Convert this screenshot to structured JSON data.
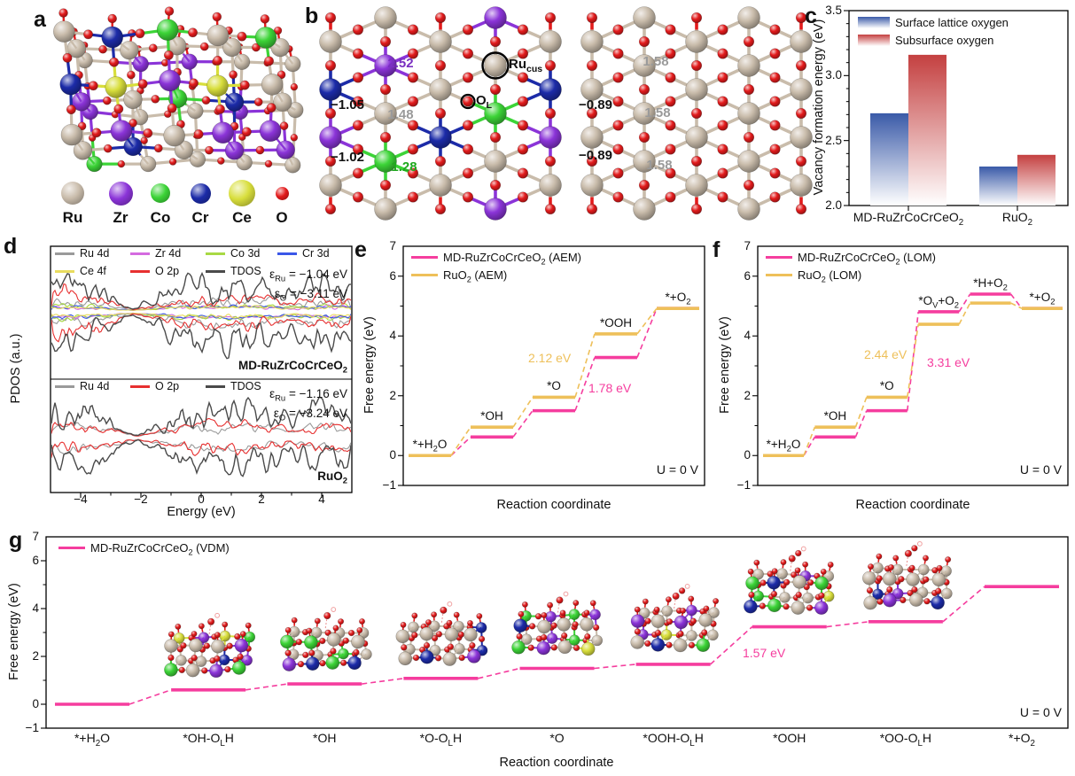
{
  "figure": {
    "panel_labels": {
      "a": "a",
      "b": "b",
      "c": "c",
      "d": "d",
      "e": "e",
      "f": "f",
      "g": "g"
    },
    "atom_legend": [
      {
        "element": "Ru",
        "color": "#C9BCAB"
      },
      {
        "element": "Zr",
        "color": "#8B34D8"
      },
      {
        "element": "Co",
        "color": "#3CD437"
      },
      {
        "element": "Cr",
        "color": "#1C2BA8"
      },
      {
        "element": "Ce",
        "color": "#D8DE3C"
      },
      {
        "element": "O",
        "color": "#E31B1C"
      }
    ],
    "panel_b": {
      "left_annotations": [
        {
          "text": "2.52",
          "color": "#7A2FC0"
        },
        {
          "text": "−1.05",
          "color": "#111111"
        },
        {
          "text": "1.48",
          "color": "#9A9A9A"
        },
        {
          "text": "−1.02",
          "color": "#111111"
        },
        {
          "text": "1.28",
          "color": "#1FA81F"
        }
      ],
      "site_labels": [
        {
          "text": "Ru_{cus}"
        },
        {
          "text": "O_{L}"
        }
      ],
      "right_annotations": [
        {
          "text": "1.58",
          "color": "#9A9A9A"
        },
        {
          "text": "−0.89",
          "color": "#111111"
        },
        {
          "text": "1.58",
          "color": "#9A9A9A"
        },
        {
          "text": "−0.89",
          "color": "#111111"
        },
        {
          "text": "1.58",
          "color": "#9A9A9A"
        }
      ]
    }
  },
  "chart_data": [
    {
      "panel": "c",
      "type": "bar",
      "categories": [
        "MD-RuZrCoCrCeO_{2}",
        "RuO_{2}"
      ],
      "series": [
        {
          "name": "Surface lattice oxygen",
          "color": "#3A5AA8",
          "values": [
            2.71,
            2.3
          ]
        },
        {
          "name": "Subsurface oxygen",
          "color": "#C44040",
          "values": [
            3.16,
            2.39
          ]
        }
      ],
      "ylabel": "Vacancy formation energy (eV)",
      "ylim": [
        2.0,
        3.5
      ],
      "yticks": [
        "2.0",
        "2.5",
        "3.0",
        "3.5"
      ],
      "bar_fill": "vertical gradient fading to white at base",
      "legend_position": "top-left"
    },
    {
      "panel": "d",
      "type": "line",
      "subtype": "PDOS",
      "xlabel": "Energy (eV)",
      "ylabel": "PDOS (a.u.)",
      "xlim": [
        -5,
        5
      ],
      "xticks": [
        -4,
        -2,
        0,
        2,
        4
      ],
      "subpanels": [
        {
          "material": "MD-RuZrCoCrCeO_{2}",
          "series": [
            {
              "name": "Ru 4d",
              "color": "#9A9A9A"
            },
            {
              "name": "Zr 4d",
              "color": "#D46BE0"
            },
            {
              "name": "Co 3d",
              "color": "#A8D944"
            },
            {
              "name": "Cr 3d",
              "color": "#3A57E8"
            },
            {
              "name": "Ce 4f",
              "color": "#E9DC5E"
            },
            {
              "name": "O 2p",
              "color": "#E73030"
            },
            {
              "name": "TDOS",
              "color": "#4A4A4A"
            }
          ],
          "annotations": [
            "ε_{Ru} = −1.04 eV",
            "ε_{O} = −3.11 eV"
          ]
        },
        {
          "material": "RuO_{2}",
          "series": [
            {
              "name": "Ru 4d",
              "color": "#9A9A9A"
            },
            {
              "name": "O 2p",
              "color": "#E73030"
            },
            {
              "name": "TDOS",
              "color": "#4A4A4A"
            }
          ],
          "annotations": [
            "ε_{Ru} = −1.16 eV",
            "ε_{O} = −3.24 eV"
          ]
        }
      ],
      "note": "spin-up and spin-down projected DOS curves, qualitative shapes"
    },
    {
      "panel": "e",
      "type": "step",
      "mechanism": "AEM",
      "xlabel": "Reaction coordinate",
      "ylabel": "Free energy (eV)",
      "ylim": [
        -1,
        7
      ],
      "yticks": [
        -1,
        0,
        2,
        4,
        6,
        7
      ],
      "steps": [
        "*+H_{2}O",
        "*OH",
        "*O",
        "*OOH",
        "*+O_{2}"
      ],
      "series": [
        {
          "name": "MD-RuZrCoCrCeO_{2} (AEM)",
          "color": "#F53D9E",
          "values": [
            0,
            0.62,
            1.5,
            3.28,
            4.92
          ]
        },
        {
          "name": "RuO_{2} (AEM)",
          "color": "#EEC05A",
          "values": [
            0,
            0.95,
            1.95,
            4.07,
            4.92
          ]
        }
      ],
      "annotations": [
        {
          "text": "2.12 eV",
          "color": "#EEC05A"
        },
        {
          "text": "1.78 eV",
          "color": "#F53D9E"
        }
      ],
      "condition": "U = 0 V"
    },
    {
      "panel": "f",
      "type": "step",
      "mechanism": "LOM",
      "xlabel": "Reaction coordinate",
      "ylabel": "Free energy (eV)",
      "ylim": [
        -1,
        7
      ],
      "yticks": [
        -1,
        0,
        2,
        4,
        6,
        7
      ],
      "steps": [
        "*+H_{2}O",
        "*OH",
        "*O",
        "*O_{V}+O_{2}",
        "*H+O_{2}",
        "*+O_{2}"
      ],
      "series": [
        {
          "name": "MD-RuZrCoCrCeO_{2} (LOM)",
          "color": "#F53D9E",
          "values": [
            0,
            0.62,
            1.5,
            4.81,
            5.4,
            4.92
          ]
        },
        {
          "name": "RuO_{2} (LOM)",
          "color": "#EEC05A",
          "values": [
            0,
            0.95,
            1.95,
            4.39,
            5.1,
            4.92
          ]
        }
      ],
      "annotations": [
        {
          "text": "2.44 eV",
          "color": "#EEC05A"
        },
        {
          "text": "3.31 eV",
          "color": "#F53D9E"
        }
      ],
      "condition": "U = 0 V"
    },
    {
      "panel": "g",
      "type": "step",
      "mechanism": "VDM",
      "xlabel": "Reaction coordinate",
      "ylabel": "Free energy (eV)",
      "ylim": [
        -1,
        7
      ],
      "yticks": [
        -1,
        0,
        2,
        4,
        6,
        7
      ],
      "steps": [
        "*+H_{2}O",
        "*OH-O_{L}H",
        "*OH",
        "*O-O_{L}H",
        "*O",
        "*OOH-O_{L}H",
        "*OOH",
        "*OO-O_{L}H",
        "*+O_{2}"
      ],
      "series": [
        {
          "name": "MD-RuZrCoCrCeO_{2} (VDM)",
          "color": "#F53D9E",
          "values": [
            0,
            0.6,
            0.85,
            1.08,
            1.5,
            1.67,
            3.24,
            3.45,
            4.92
          ]
        }
      ],
      "annotations": [
        {
          "text": "1.57 eV",
          "color": "#F53D9E"
        }
      ],
      "condition": "U = 0 V",
      "insets_above_steps": [
        1,
        2,
        3,
        4,
        5,
        6,
        7
      ],
      "insets_note": "ball-and-stick structure snapshots above intermediate steps"
    }
  ]
}
